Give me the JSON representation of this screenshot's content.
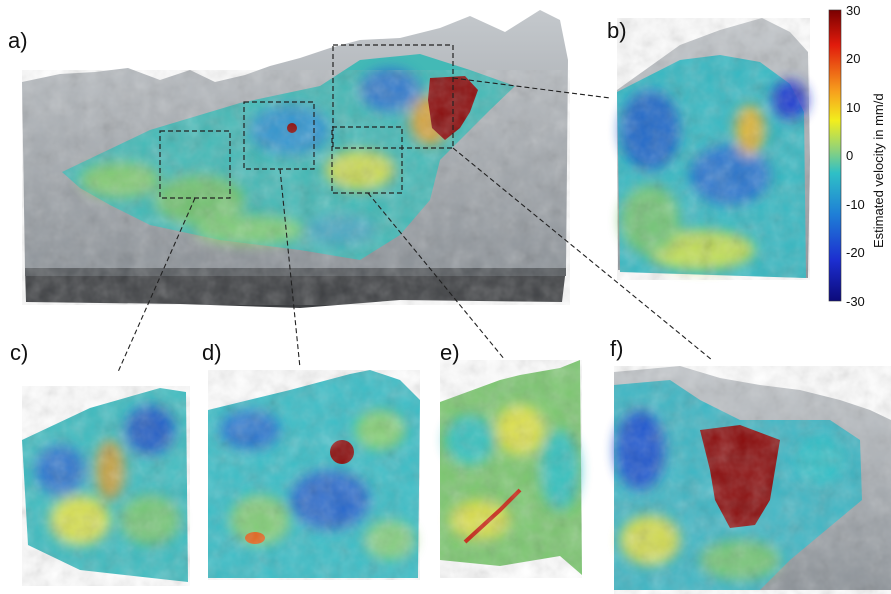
{
  "panels": {
    "a": "a)",
    "b": "b)",
    "c": "c)",
    "d": "d)",
    "e": "e)",
    "f": "f)"
  },
  "colorbar": {
    "title": "Estimated velocity in mm/d",
    "ticks": [
      "30",
      "20",
      "10",
      "0",
      "-10",
      "-20",
      "-30"
    ],
    "range": [
      -30,
      30
    ],
    "stops": [
      "#7a0000",
      "#e11b0c",
      "#f7a01d",
      "#f2ee1d",
      "#8fd27a",
      "#2fc0c6",
      "#1f80d6",
      "#1c2ed0",
      "#0c0a7a"
    ]
  },
  "colors": {
    "terrain": "#9aa0a6",
    "terrain_dark": "#6f757b",
    "base": "#3b3d40",
    "cyan": "#2fc0c6",
    "green": "#7cc770",
    "yellow": "#e8e44a",
    "blue": "#2b70c9",
    "red": "#8b0b0b"
  }
}
